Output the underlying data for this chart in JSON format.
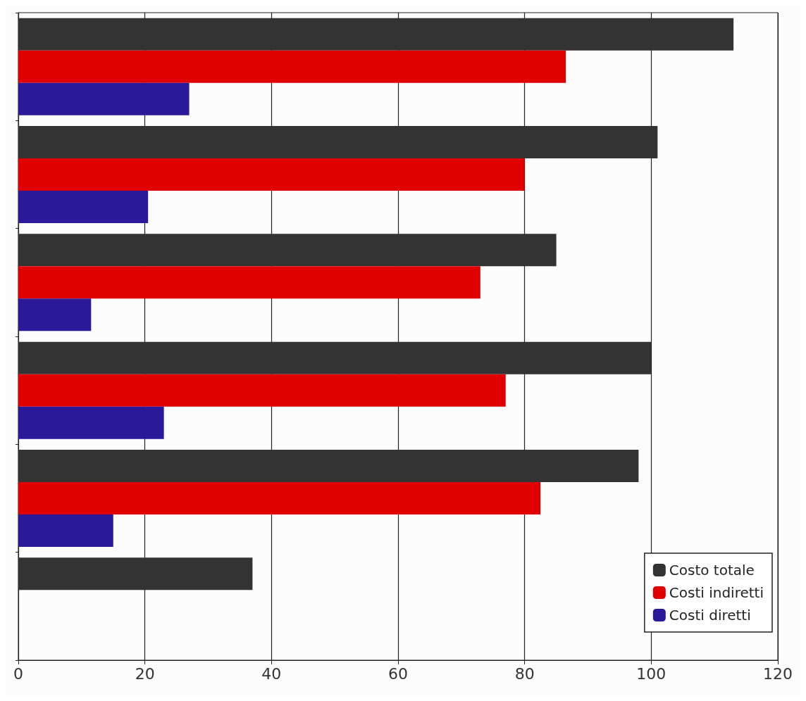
{
  "chart_data": {
    "type": "bar",
    "orientation": "horizontal",
    "categories": [
      null,
      null,
      null,
      null,
      null,
      null
    ],
    "series": [
      {
        "name": "Costo totale",
        "color": "#333333",
        "values": [
          113,
          101,
          85,
          100,
          98,
          37
        ]
      },
      {
        "name": "Costi indiretti",
        "color": "#e00000",
        "values": [
          86.5,
          80,
          73,
          77,
          82.5,
          null
        ]
      },
      {
        "name": "Costi diretti",
        "color": "#2a1a9a",
        "values": [
          27,
          20.5,
          11.5,
          23,
          15,
          null
        ]
      }
    ],
    "xlim": [
      0,
      120
    ],
    "xticks": [
      0,
      20,
      40,
      60,
      80,
      100,
      120
    ],
    "grid": "x",
    "legend": "bottom right",
    "tick_labels": "x"
  }
}
